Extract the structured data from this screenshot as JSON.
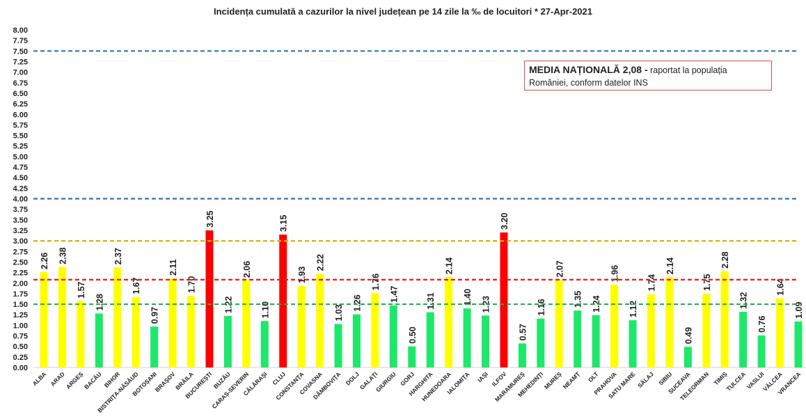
{
  "chart_data": {
    "type": "bar",
    "title": "Incidența cumulată a cazurilor la nivel județean pe 14 zile la ‰ de locuitori *   27-Apr-2021",
    "xlabel": "",
    "ylabel": "",
    "ylim": [
      0,
      8
    ],
    "ytick_step": 0.25,
    "grid": false,
    "categories": [
      "ALBA",
      "ARAD",
      "ARGEȘ",
      "BACĂU",
      "BIHOR",
      "BISTRIȚA-NĂSĂUD",
      "BOTOȘANI",
      "BRAȘOV",
      "BRĂILA",
      "BUCUREȘTI",
      "BUZĂU",
      "CARAȘ-SEVERIN",
      "CĂLĂRAȘI",
      "CLUJ",
      "CONSTANȚA",
      "COVASNA",
      "DÂMBOVIȚA",
      "DOLJ",
      "GALAȚI",
      "GIURGIU",
      "GORJ",
      "HARGHITA",
      "HUNEDOARA",
      "IALOMIȚA",
      "IAȘI",
      "ILFOV",
      "MARAMUREȘ",
      "MEHEDINȚI",
      "MUREȘ",
      "NEAMȚ",
      "OLT",
      "PRAHOVA",
      "SATU MARE",
      "SĂLAJ",
      "SIBIU",
      "SUCEAVA",
      "TELEORMAN",
      "TIMIȘ",
      "TULCEA",
      "VASLUI",
      "VÂLCEA",
      "VRANCEA"
    ],
    "values": [
      2.26,
      2.38,
      1.57,
      1.28,
      2.37,
      1.67,
      0.97,
      2.11,
      1.7,
      3.25,
      1.22,
      2.06,
      1.1,
      3.15,
      1.93,
      2.22,
      1.03,
      1.26,
      1.76,
      1.47,
      0.5,
      1.31,
      2.14,
      1.4,
      1.23,
      3.2,
      0.57,
      1.16,
      2.07,
      1.35,
      1.24,
      1.96,
      1.12,
      1.74,
      2.14,
      0.49,
      1.75,
      2.28,
      1.32,
      0.76,
      1.64,
      1.09
    ],
    "colors": {
      "low": "#1ee86a",
      "mid": "#ffff00",
      "high": "#ff0000"
    },
    "thresholds": [
      {
        "value": 7.5,
        "color": "#2e75b6"
      },
      {
        "value": 4.0,
        "color": "#2e75b6"
      },
      {
        "value": 3.0,
        "color": "#e0b000"
      },
      {
        "value": 2.08,
        "color": "#e02020"
      },
      {
        "value": 1.5,
        "color": "#20b050"
      }
    ]
  },
  "note": {
    "bold": "MEDIA NAȚIONALĂ  2,08 -",
    "text": " raportat la populația României, conform datelor INS"
  }
}
